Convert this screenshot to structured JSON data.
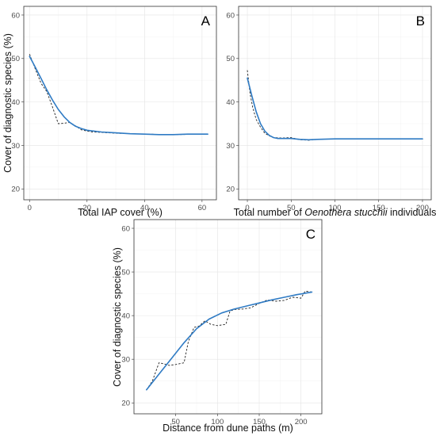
{
  "colors": {
    "fit": "#2f7bc4",
    "observed": "#222222"
  },
  "chart_data": [
    {
      "panel": "A",
      "type": "line",
      "xlabel": "Total IAP cover (%)",
      "ylabel": "Cover of diagnostic species (%)",
      "xlim": [
        -2,
        65
      ],
      "ylim": [
        17.5,
        62
      ],
      "xticks": [
        0,
        20,
        40,
        60
      ],
      "yticks": [
        20,
        30,
        40,
        50,
        60
      ],
      "series": [
        {
          "style": "solid-blue",
          "x": [
            0,
            2,
            4,
            6,
            8,
            10,
            12,
            14,
            16,
            18,
            20,
            25,
            30,
            35,
            40,
            45,
            50,
            55,
            60,
            62
          ],
          "y": [
            50.5,
            48.0,
            45.4,
            42.8,
            40.4,
            38.3,
            36.6,
            35.3,
            34.4,
            33.9,
            33.5,
            33.1,
            32.9,
            32.7,
            32.6,
            32.5,
            32.5,
            32.6,
            32.6,
            32.6
          ]
        },
        {
          "style": "dashed-black",
          "x": [
            0,
            2,
            4,
            6,
            8,
            10,
            12,
            14,
            16,
            18,
            20,
            22,
            25,
            30,
            40,
            50,
            62
          ],
          "y": [
            51.0,
            47.6,
            44.3,
            42.4,
            38.8,
            35.0,
            35.1,
            35.3,
            34.5,
            33.6,
            33.3,
            33.1,
            33.0,
            32.8,
            32.6,
            32.5,
            32.6
          ]
        }
      ]
    },
    {
      "panel": "B",
      "type": "line",
      "xlabel_parts": [
        "Total number of ",
        "Oenothera stucchii",
        " individuals"
      ],
      "ylabel": "",
      "xlim": [
        -10,
        210
      ],
      "ylim": [
        17.5,
        62
      ],
      "xticks": [
        0,
        50,
        100,
        150,
        200
      ],
      "yticks": [
        20,
        30,
        40,
        50,
        60
      ],
      "series": [
        {
          "style": "solid-blue",
          "x": [
            0,
            5,
            10,
            15,
            20,
            25,
            30,
            35,
            40,
            50,
            60,
            70,
            80,
            100,
            120,
            150,
            200
          ],
          "y": [
            45.5,
            41.5,
            37.8,
            35.0,
            33.3,
            32.3,
            31.8,
            31.6,
            31.6,
            31.6,
            31.4,
            31.3,
            31.4,
            31.5,
            31.5,
            31.5,
            31.5
          ]
        },
        {
          "style": "dashed-black",
          "x": [
            0,
            3,
            6,
            10,
            15,
            20,
            25,
            30,
            40,
            50,
            60,
            70,
            80,
            100,
            130,
            200
          ],
          "y": [
            47.3,
            42.0,
            38.8,
            36.0,
            34.2,
            32.8,
            32.2,
            31.8,
            31.7,
            31.8,
            31.3,
            31.2,
            31.4,
            31.5,
            31.5,
            31.5
          ]
        }
      ]
    },
    {
      "panel": "C",
      "type": "line",
      "xlabel": "Distance from dune paths (m)",
      "ylabel": "Cover of diagnostic species (%)",
      "xlim": [
        0,
        225
      ],
      "ylim": [
        17.5,
        62
      ],
      "xticks": [
        50,
        100,
        150,
        200
      ],
      "yticks": [
        20,
        30,
        40,
        50,
        60
      ],
      "series": [
        {
          "style": "solid-blue",
          "x": [
            15,
            30,
            45,
            60,
            75,
            90,
            105,
            120,
            135,
            150,
            165,
            180,
            195,
            213
          ],
          "y": [
            23.0,
            26.6,
            30.2,
            33.8,
            37.0,
            39.2,
            40.6,
            41.5,
            42.2,
            42.9,
            43.6,
            44.2,
            44.8,
            45.4
          ]
        },
        {
          "style": "dashed-black",
          "x": [
            15,
            22,
            30,
            35,
            42,
            50,
            60,
            65,
            72,
            78,
            85,
            92,
            100,
            110,
            115,
            120,
            130,
            140,
            150,
            160,
            170,
            180,
            190,
            200,
            205,
            213
          ],
          "y": [
            23.0,
            25.0,
            29.2,
            29.0,
            28.6,
            28.8,
            29.2,
            34.0,
            37.3,
            37.6,
            38.8,
            38.0,
            37.7,
            38.0,
            41.0,
            41.4,
            41.5,
            41.8,
            42.8,
            43.6,
            43.3,
            43.5,
            44.2,
            44.0,
            45.6,
            45.4
          ]
        }
      ]
    }
  ]
}
